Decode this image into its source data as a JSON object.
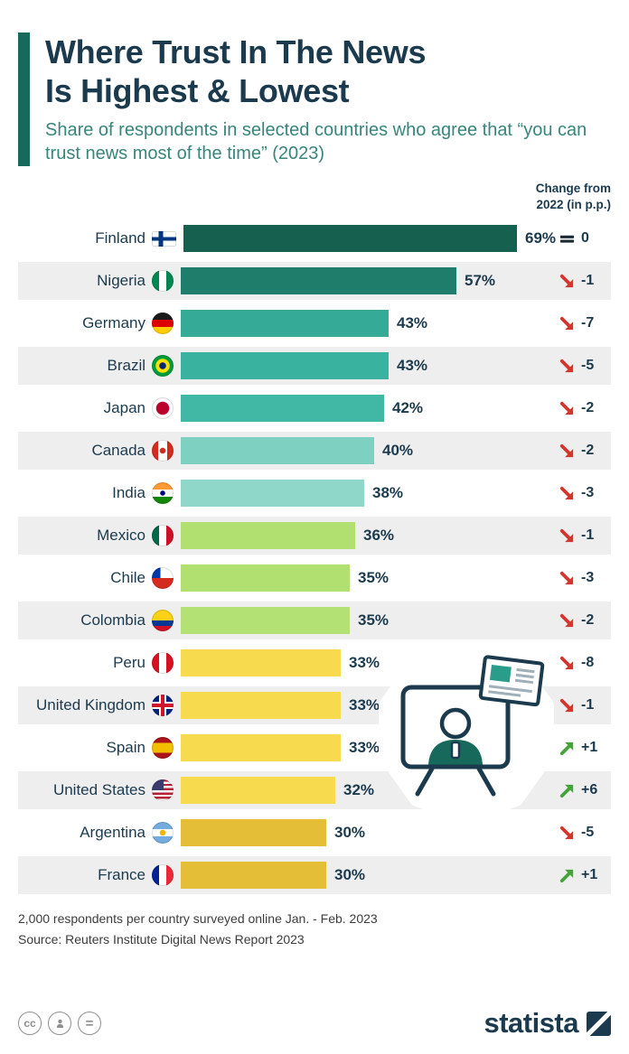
{
  "header": {
    "title_line1": "Where Trust In The News",
    "title_line2": "Is Highest & Lowest",
    "subtitle": "Share of respondents in selected countries who agree that “you can trust news most of the time” (2023)",
    "change_col_line1": "Change from",
    "change_col_line2": "2022 (in p.p.)"
  },
  "chart_data": {
    "type": "bar",
    "orientation": "horizontal",
    "title": "Where Trust In The News Is Highest & Lowest",
    "unit": "%",
    "xlim": [
      0,
      69
    ],
    "grid": false,
    "legend": false,
    "rows": [
      {
        "country": "Finland",
        "flag": "finland-flag",
        "value": 69,
        "value_label": "69%",
        "change": 0,
        "change_label": "0",
        "direction": "flat",
        "bar_color": "#15604e"
      },
      {
        "country": "Nigeria",
        "flag": "nigeria-flag",
        "value": 57,
        "value_label": "57%",
        "change": -1,
        "change_label": "-1",
        "direction": "down",
        "bar_color": "#1e7e6b"
      },
      {
        "country": "Germany",
        "flag": "germany-flag",
        "value": 43,
        "value_label": "43%",
        "change": -7,
        "change_label": "-7",
        "direction": "down",
        "bar_color": "#35ab97"
      },
      {
        "country": "Brazil",
        "flag": "brazil-flag",
        "value": 43,
        "value_label": "43%",
        "change": -5,
        "change_label": "-5",
        "direction": "down",
        "bar_color": "#3ab2a0"
      },
      {
        "country": "Japan",
        "flag": "japan-flag",
        "value": 42,
        "value_label": "42%",
        "change": -2,
        "change_label": "-2",
        "direction": "down",
        "bar_color": "#41b8a6"
      },
      {
        "country": "Canada",
        "flag": "canada-flag",
        "value": 40,
        "value_label": "40%",
        "change": -2,
        "change_label": "-2",
        "direction": "down",
        "bar_color": "#7ed0c0"
      },
      {
        "country": "India",
        "flag": "india-flag",
        "value": 38,
        "value_label": "38%",
        "change": -3,
        "change_label": "-3",
        "direction": "down",
        "bar_color": "#8fd7c9"
      },
      {
        "country": "Mexico",
        "flag": "mexico-flag",
        "value": 36,
        "value_label": "36%",
        "change": -1,
        "change_label": "-1",
        "direction": "down",
        "bar_color": "#b2e070"
      },
      {
        "country": "Chile",
        "flag": "chile-flag",
        "value": 35,
        "value_label": "35%",
        "change": -3,
        "change_label": "-3",
        "direction": "down",
        "bar_color": "#b2e070"
      },
      {
        "country": "Colombia",
        "flag": "colombia-flag",
        "value": 35,
        "value_label": "35%",
        "change": -2,
        "change_label": "-2",
        "direction": "down",
        "bar_color": "#b4e173"
      },
      {
        "country": "Peru",
        "flag": "peru-flag",
        "value": 33,
        "value_label": "33%",
        "change": -8,
        "change_label": "-8",
        "direction": "down",
        "bar_color": "#f8da4e"
      },
      {
        "country": "United Kingdom",
        "flag": "uk-flag",
        "value": 33,
        "value_label": "33%",
        "change": -1,
        "change_label": "-1",
        "direction": "down",
        "bar_color": "#f8da4e"
      },
      {
        "country": "Spain",
        "flag": "spain-flag",
        "value": 33,
        "value_label": "33%",
        "change": 1,
        "change_label": "+1",
        "direction": "up",
        "bar_color": "#f8da4e"
      },
      {
        "country": "United States",
        "flag": "us-flag",
        "value": 32,
        "value_label": "32%",
        "change": 6,
        "change_label": "+6",
        "direction": "up",
        "bar_color": "#f8da4e"
      },
      {
        "country": "Argentina",
        "flag": "argentina-flag",
        "value": 30,
        "value_label": "30%",
        "change": -5,
        "change_label": "-5",
        "direction": "down",
        "bar_color": "#e4be37"
      },
      {
        "country": "France",
        "flag": "france-flag",
        "value": 30,
        "value_label": "30%",
        "change": 1,
        "change_label": "+1",
        "direction": "up",
        "bar_color": "#e4be37"
      }
    ]
  },
  "footer": {
    "note": "2,000 respondents per country surveyed online Jan. - Feb. 2023",
    "source": "Source: Reuters Institute Digital News Report 2023"
  },
  "branding": {
    "logo_text": "statista",
    "license_cc_text": "cc",
    "license_equals_text": "="
  },
  "colors": {
    "title": "#1b3a4d",
    "subtitle": "#37857b",
    "accent_bar": "#17695c",
    "row_alt_bg": "#eeeeee",
    "arrow_down": "#d2362c",
    "arrow_up": "#45a33a",
    "arrow_flat": "#1c2b33",
    "logo": "#1b3a4d"
  }
}
